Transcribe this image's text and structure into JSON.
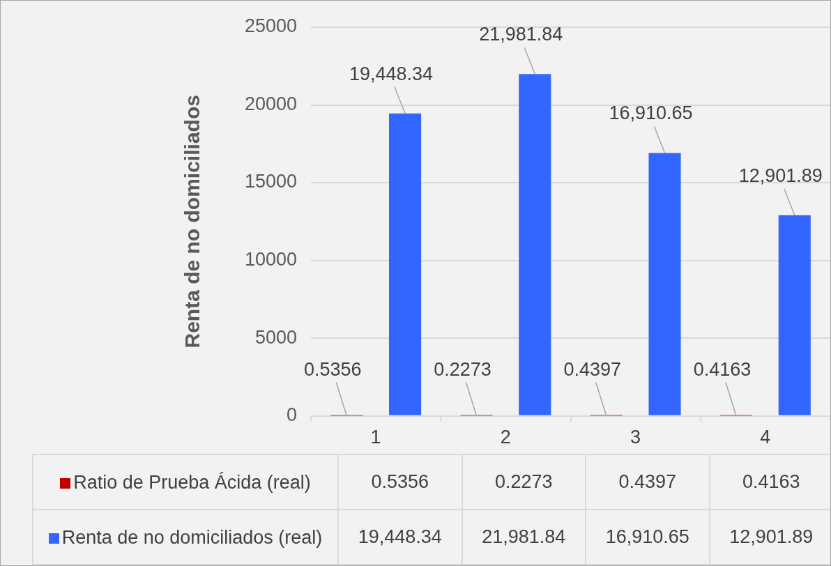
{
  "chart_data": {
    "type": "bar",
    "ylabel": "Renta de no domiciliados",
    "categories": [
      "1",
      "2",
      "3",
      "4"
    ],
    "series": [
      {
        "name": "Ratio de Prueba Ácida (real)",
        "color": "#c00000",
        "values": [
          0.5356,
          0.2273,
          0.4397,
          0.4163
        ],
        "value_labels": [
          "0.5356",
          "0.2273",
          "0.4397",
          "0.4163"
        ]
      },
      {
        "name": "Renta de no domiciliados (real)",
        "color": "#3366ff",
        "values": [
          19448.34,
          21981.84,
          16910.65,
          12901.89
        ],
        "value_labels": [
          "19,448.34",
          "21,981.84",
          "16,910.65",
          "12,901.89"
        ]
      }
    ],
    "ylim": [
      0,
      25000
    ],
    "yticks": [
      0,
      5000,
      10000,
      15000,
      20000,
      25000
    ],
    "grid": "y",
    "legend": "bottom"
  }
}
